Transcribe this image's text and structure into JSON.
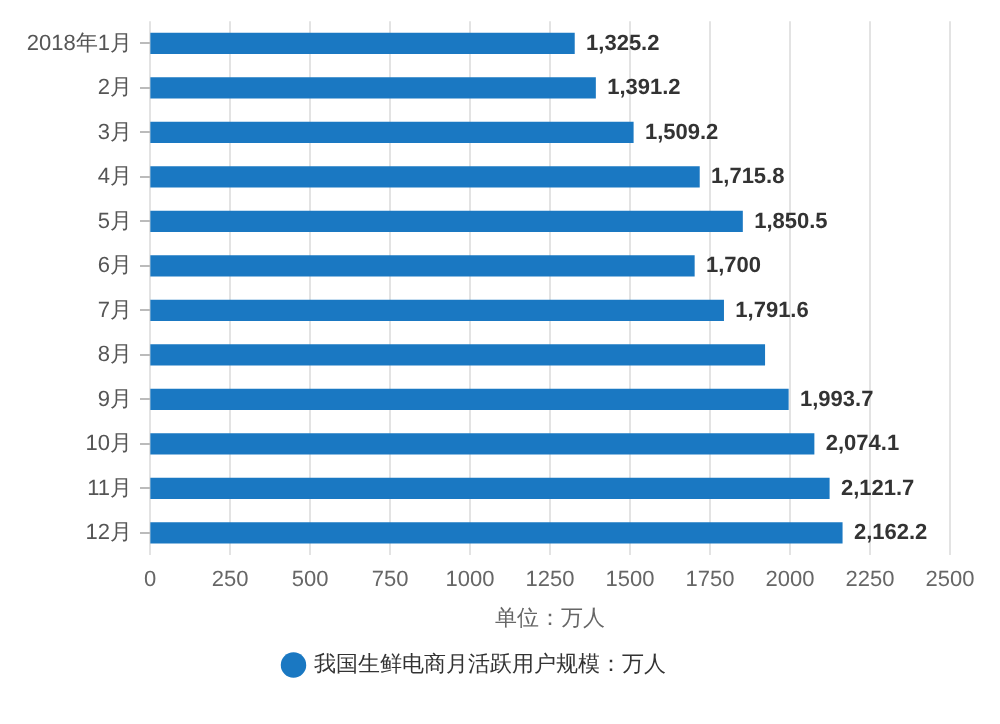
{
  "chart_data": {
    "type": "bar",
    "orientation": "horizontal",
    "xlabel": "单位：万人",
    "categories": [
      "2018年1月",
      "2月",
      "3月",
      "4月",
      "5月",
      "6月",
      "7月",
      "8月",
      "9月",
      "10月",
      "11月",
      "12月"
    ],
    "series": [
      {
        "name": "我国生鲜电商月活跃用户规模：万人",
        "color": "#1a78c2",
        "values": [
          1325.2,
          1391.2,
          1509.2,
          1715.8,
          1850.5,
          1700,
          1791.6,
          1920,
          1993.7,
          2074.1,
          2121.7,
          2162.2
        ],
        "value_labels": [
          "1,325.2",
          "1,391.2",
          "1,509.2",
          "1,715.8",
          "1,850.5",
          "1,700",
          "1,791.6",
          null,
          "1,993.7",
          "2,074.1",
          "2,121.7",
          "2,162.2"
        ]
      }
    ],
    "xlim": [
      0,
      2500
    ],
    "xticks": [
      0,
      250,
      500,
      750,
      1000,
      1250,
      1500,
      1750,
      2000,
      2250,
      2500
    ],
    "grid": "x",
    "legend": "bottom"
  }
}
